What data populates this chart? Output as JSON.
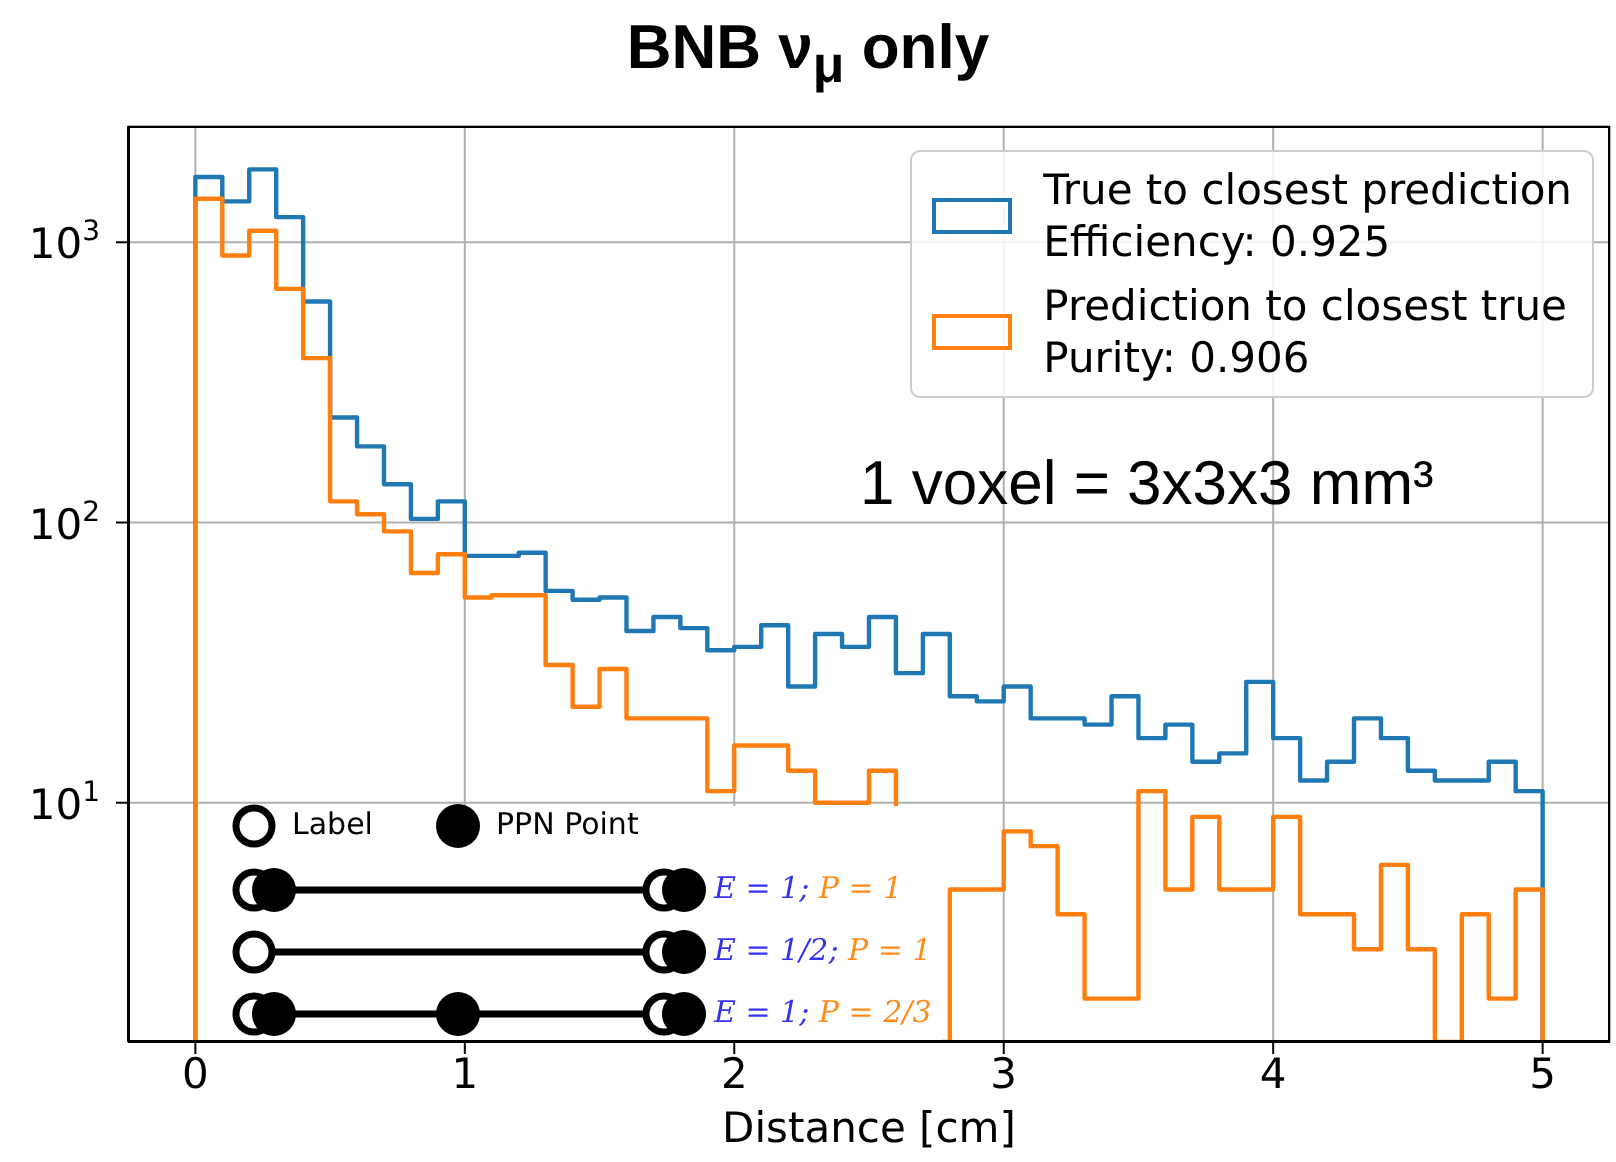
{
  "chart_data": {
    "type": "histogram",
    "title": "BNB ν$_{μ}$ only",
    "xlabel": "Distance [cm]",
    "bins": [
      0,
      0.1,
      0.2,
      0.3,
      0.4,
      0.5,
      0.6,
      0.7,
      0.8,
      0.9,
      1,
      1.1,
      1.2,
      1.3,
      1.4,
      1.5,
      1.6,
      1.7,
      1.8,
      1.9,
      2,
      2.1,
      2.2,
      2.3,
      2.4,
      2.5,
      2.6,
      2.7,
      2.8,
      2.9,
      3,
      3.1,
      3.2,
      3.3,
      3.4,
      3.5,
      3.6,
      3.7,
      3.8,
      3.9,
      4,
      4.1,
      4.2,
      4.3,
      4.4,
      4.5,
      4.6,
      4.7,
      4.8,
      4.9,
      5
    ],
    "series": [
      {
        "name": "True to closest prediction\nEfficiency: 0.925",
        "color": "#1f77b4",
        "values": [
          1710,
          1400,
          1820,
          1230,
          615,
          237,
          187,
          137,
          103,
          119,
          76,
          76,
          78,
          57,
          53,
          54,
          41,
          46,
          42,
          35,
          36,
          43,
          26,
          40,
          36,
          46,
          29,
          40,
          24,
          23,
          26,
          20,
          20,
          19,
          24,
          17,
          19,
          14,
          15,
          27,
          17,
          12,
          14,
          20,
          17,
          13,
          12,
          12,
          14,
          11
        ]
      },
      {
        "name": "Prediction to closest true\nPurity: 0.906",
        "color": "#ff7f0e",
        "values": [
          1430,
          897,
          1100,
          682,
          386,
          119,
          107,
          93,
          66,
          77,
          54,
          55,
          55,
          31,
          22,
          30,
          20,
          20,
          20,
          11,
          16,
          16,
          13,
          10,
          10,
          13,
          null,
          null,
          4.9,
          4.9,
          7.9,
          7.0,
          4.0,
          2.0,
          2.0,
          11,
          4.9,
          8.9,
          4.9,
          4.9,
          8.9,
          4.0,
          4.0,
          3.0,
          6.0,
          3.0,
          null,
          4.0,
          2.0,
          4.9
        ]
      }
    ],
    "xlim": [
      -0.25,
      5.25
    ],
    "xticks": [
      0,
      1,
      2,
      3,
      4,
      5
    ],
    "ylim": [
      1.4,
      2600
    ],
    "yticks": [
      {
        "value": 10,
        "label": "10$^{1}$"
      },
      {
        "value": 100,
        "label": "10$^{2}$"
      },
      {
        "value": 1000,
        "label": "10$^{3}$"
      }
    ],
    "log": "y",
    "grid": true,
    "legend": "top right",
    "annotations": [
      "1 voxel = 3x3x3 mm³",
      "Label",
      "PPN Point",
      "E = 1; P = 1",
      "E = 1/2; P = 1",
      "E = 1; P = 2/3"
    ]
  }
}
